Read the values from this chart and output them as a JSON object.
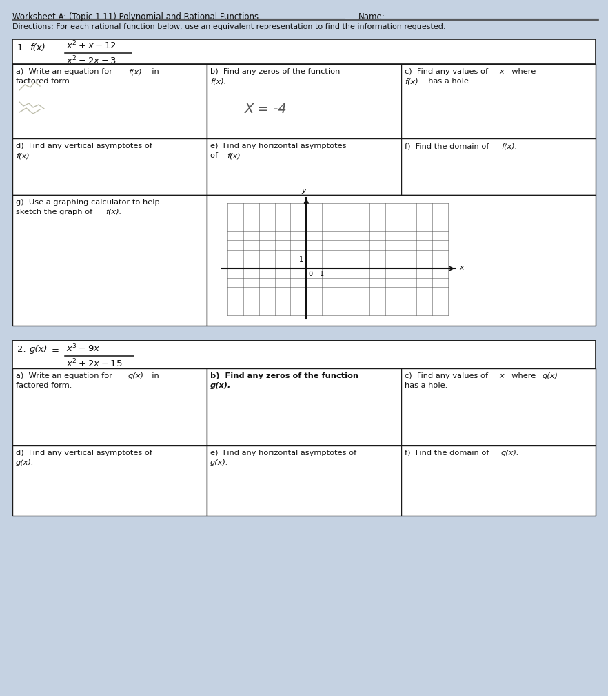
{
  "bg_color": "#c5d2e2",
  "title": "Worksheet A: (Topic 1.11) Polynomial and Rational Functions",
  "name_label": "Name:",
  "directions": "Directions: For each rational function below, use an equivalent representation to find the information requested.",
  "cell1a_label": "a)  Write an equation for  f(x)  in\nfactored form.",
  "cell1b_label": "b)  Find any zeros of the function\nf(x).",
  "cell1b_answer": "X = -4",
  "cell1c_label": "c)  Find any values of  x  where\nf(x)  has a hole.",
  "cell1d_label": "d)  Find any vertical asymptotes of\nf(x).",
  "cell1e_label": "e)  Find any horizontal asymptotes\nof  f(x).",
  "cell1f_label": "f)  Find the domain of  f(x).",
  "cell1g_label": "g)  Use a graphing calculator to help\nsketch the graph of  f(x).",
  "cell2a_label": "a)  Write an equation for  g(x)  in\nfactored form.",
  "cell2b_label": "b)  Find any zeros of the function\ng(x).",
  "cell2c_label": "c)  Find any values of  x  where  g(x)\nhas a hole.",
  "cell2d_label": "d)  Find any vertical asymptotes of\ng(x).",
  "cell2e_label": "e)  Find any horizontal asymptotes of\ng(x).",
  "cell2f_label": "f)  Find the domain of  g(x).",
  "border_color": "#1a1a1a",
  "text_color": "#111111",
  "cell_bg": "#ffffff",
  "header_bg": "#ffffff"
}
